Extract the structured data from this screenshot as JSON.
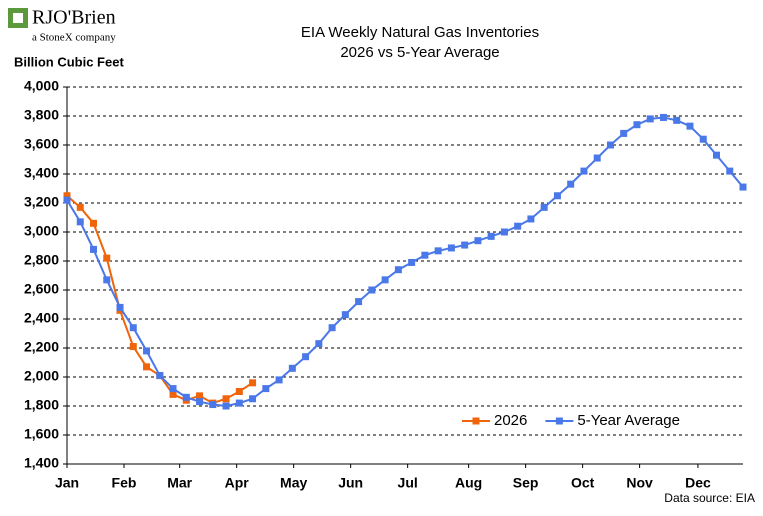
{
  "logo": {
    "name": "RJO'Brien",
    "tagline": "a StoneX company"
  },
  "chart_data": {
    "type": "line",
    "title": "EIA Weekly Natural Gas Inventories",
    "subtitle": "2026 vs 5-Year Average",
    "y_label": "Billion Cubic Feet",
    "source": "Data source: EIA",
    "x": [
      0,
      1,
      2,
      3,
      4,
      5,
      6,
      7,
      8,
      9,
      10,
      11,
      12,
      13,
      14,
      15,
      16,
      17,
      18,
      19,
      20,
      21,
      22,
      23,
      24,
      25,
      26,
      27,
      28,
      29,
      30,
      31,
      32,
      33,
      34,
      35,
      36,
      37,
      38,
      39,
      40,
      41,
      42,
      43,
      44,
      45,
      46,
      47,
      48,
      49,
      50,
      51
    ],
    "xlim": [
      0,
      51
    ],
    "xticks": [
      {
        "value": 0,
        "label": "Jan"
      },
      {
        "value": 4.3,
        "label": "Feb"
      },
      {
        "value": 8.5,
        "label": "Mar"
      },
      {
        "value": 12.8,
        "label": "Apr"
      },
      {
        "value": 17.1,
        "label": "May"
      },
      {
        "value": 21.4,
        "label": "Jun"
      },
      {
        "value": 25.7,
        "label": "Jul"
      },
      {
        "value": 30.3,
        "label": "Aug"
      },
      {
        "value": 34.6,
        "label": "Sep"
      },
      {
        "value": 38.9,
        "label": "Oct"
      },
      {
        "value": 43.2,
        "label": "Nov"
      },
      {
        "value": 47.6,
        "label": "Dec"
      }
    ],
    "ylim": [
      1400,
      4000
    ],
    "yticks": [
      {
        "value": 1400,
        "label": "1,400"
      },
      {
        "value": 1600,
        "label": "1,600"
      },
      {
        "value": 1800,
        "label": "1,800"
      },
      {
        "value": 2000,
        "label": "2,000"
      },
      {
        "value": 2200,
        "label": "2,200"
      },
      {
        "value": 2400,
        "label": "2,400"
      },
      {
        "value": 2600,
        "label": "2,600"
      },
      {
        "value": 2800,
        "label": "2,800"
      },
      {
        "value": 3000,
        "label": "3,000"
      },
      {
        "value": 3200,
        "label": "3,200"
      },
      {
        "value": 3400,
        "label": "3,400"
      },
      {
        "value": 3600,
        "label": "3,600"
      },
      {
        "value": 3800,
        "label": "3,800"
      },
      {
        "value": 4000,
        "label": "4,000"
      }
    ],
    "grid": true,
    "legend": "bottom-right",
    "series": [
      {
        "name": "2026",
        "color": "#f0640a",
        "values": [
          3250,
          3170,
          3060,
          2820,
          2460,
          2210,
          2070,
          2010,
          1880,
          1840,
          1870,
          1820,
          1850,
          1900,
          1960,
          null,
          null,
          null,
          null,
          null,
          null,
          null,
          null,
          null,
          null,
          null,
          null,
          null,
          null,
          null,
          null,
          null,
          null,
          null,
          null,
          null,
          null,
          null,
          null,
          null,
          null,
          null,
          null,
          null,
          null,
          null,
          null,
          null,
          null,
          null,
          null,
          null
        ]
      },
      {
        "name": "5-Year Average",
        "color": "#4a78e8",
        "values": [
          3220,
          3070,
          2880,
          2670,
          2480,
          2340,
          2180,
          2010,
          1920,
          1860,
          1830,
          1810,
          1800,
          1820,
          1850,
          1920,
          1980,
          2060,
          2140,
          2230,
          2340,
          2430,
          2520,
          2600,
          2670,
          2740,
          2790,
          2840,
          2870,
          2890,
          2910,
          2940,
          2970,
          3000,
          3040,
          3090,
          3170,
          3250,
          3330,
          3420,
          3510,
          3600,
          3680,
          3740,
          3780,
          3790,
          3770,
          3730,
          3640,
          3530,
          3420,
          3310
        ]
      }
    ]
  }
}
